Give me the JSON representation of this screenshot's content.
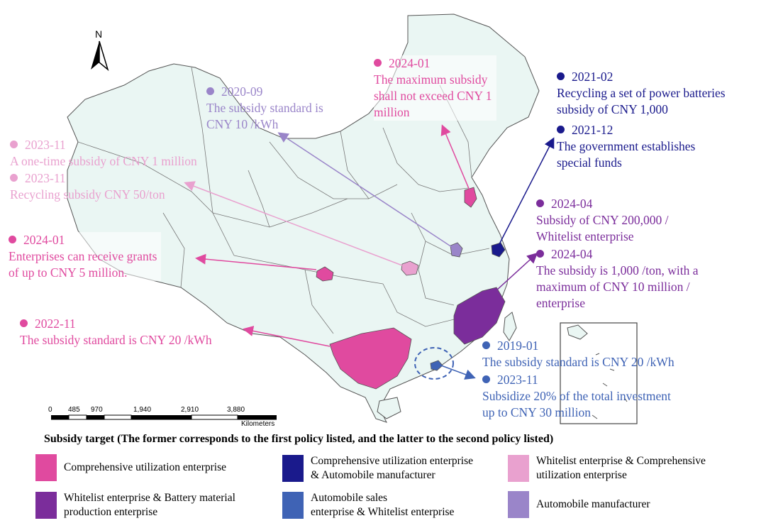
{
  "colors": {
    "land": "#eaf6f3",
    "border": "#555555",
    "comprehensive": "#e04a9f",
    "whitelist_battery": "#7b2d9b",
    "comp_auto": "#1a1a8c",
    "whitelist_comp": "#e9a1cf",
    "auto_sales": "#3f63b5",
    "auto_mfr": "#9a85c9"
  },
  "north_label": "N",
  "scale": {
    "ticks": [
      "0",
      "485",
      "970",
      "1,940",
      "2,910",
      "3,880"
    ],
    "unit": "Kilometers"
  },
  "annotations": {
    "guangxi": {
      "date": "2022-11",
      "text": "The subsidy standard is CNY 20 /kWh"
    },
    "sichuan": {
      "date": "2024-01",
      "text": "Enterprises can receive grants\nof up to CNY 5 million."
    },
    "hubei_a": {
      "date": "2023-11",
      "text": "A one-time subsidy of CNY 1 million"
    },
    "hubei_b": {
      "date": "2023-11",
      "text": "Recycling subsidy CNY 50/ton"
    },
    "anhui": {
      "date": "2020-09",
      "text": "The subsidy standard is\nCNY 10 /kWh"
    },
    "shandong": {
      "date": "2024-01",
      "text": "The maximum subsidy\nshall not exceed CNY 1\nmillion"
    },
    "shanghai_a": {
      "date": "2021-02",
      "text": "Recycling a set of power batteries\nsubsidy of CNY 1,000"
    },
    "shanghai_b": {
      "date": "2021-12",
      "text": "The government establishes\nspecial funds"
    },
    "fujian_a": {
      "date": "2024-04",
      "text": "Subsidy of CNY 200,000 /\nWhitelist enterprise"
    },
    "fujian_b": {
      "date": "2024-04",
      "text": "The subsidy is 1,000 /ton, with a\nmaximum of CNY 10 million /\nenterprise"
    },
    "shenzhen_a": {
      "date": "2019-01",
      "text": "The subsidy standard is CNY 20 /kWh"
    },
    "shenzhen_b": {
      "date": "2023-11",
      "text": "Subsidize 20% of the total investment\nup to CNY 30 million"
    }
  },
  "legend": {
    "title": "Subsidy target (The former corresponds to the first policy listed, and the latter to the second policy listed)",
    "items": [
      {
        "label": "Comprehensive utilization enterprise",
        "color": "#e04a9f"
      },
      {
        "label": "Comprehensive utilization enterprise\n& Automobile manufacturer",
        "color": "#1a1a8c"
      },
      {
        "label": "Whitelist enterprise & Comprehensive\nutilization enterprise",
        "color": "#e9a1cf"
      },
      {
        "label": "Whitelist enterprise & Battery material\nproduction enterprise",
        "color": "#7b2d9b"
      },
      {
        "label": "Automobile sales\nenterprise & Whitelist enterprise",
        "color": "#3f63b5"
      },
      {
        "label": "Automobile manufacturer",
        "color": "#9a85c9"
      }
    ]
  }
}
